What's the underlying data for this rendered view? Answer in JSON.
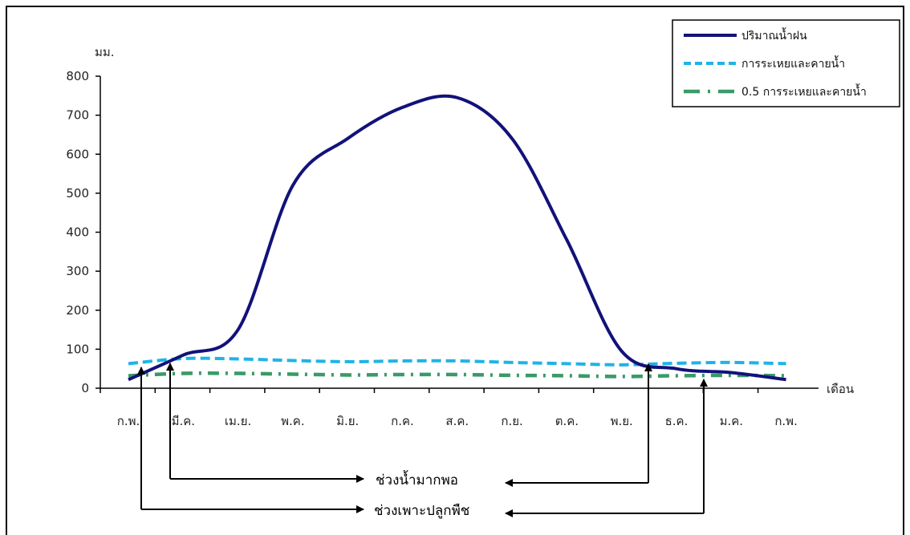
{
  "chart_data": {
    "type": "line",
    "ylabel": "มม.",
    "xlabel": "เดือน",
    "ylim": [
      0,
      800
    ],
    "yticks": [
      0,
      100,
      200,
      300,
      400,
      500,
      600,
      700,
      800
    ],
    "categories": [
      "ก.พ.",
      "มี.ค.",
      "เม.ย.",
      "พ.ค.",
      "มิ.ย.",
      "ก.ค.",
      "ส.ค.",
      "ก.ย.",
      "ต.ค.",
      "พ.ย.",
      "ธ.ค.",
      "ม.ค.",
      "ก.พ."
    ],
    "series": [
      {
        "name": "ปริมาณน้ำฝน",
        "color": "#12127a",
        "style": "solid",
        "values": [
          22,
          85,
          150,
          520,
          640,
          720,
          745,
          640,
          380,
          95,
          50,
          40,
          22
        ]
      },
      {
        "name": "การระเหยและคายน้ำ",
        "color": "#1fb3e8",
        "style": "dashed",
        "values": [
          63,
          76,
          75,
          71,
          68,
          70,
          70,
          66,
          63,
          60,
          64,
          66,
          63
        ]
      },
      {
        "name": "0.5 การระเหยและคายน้ำ",
        "color": "#3a9a68",
        "style": "dashdot",
        "values": [
          32,
          38,
          38,
          36,
          34,
          35,
          35,
          33,
          32,
          30,
          32,
          33,
          32
        ]
      }
    ],
    "legend": "top-right",
    "grid": false
  },
  "annotations": {
    "sufficient_water": "ช่วงน้ำมากพอ",
    "planting_period": "ช่วงเพาะปลูกพืช"
  }
}
